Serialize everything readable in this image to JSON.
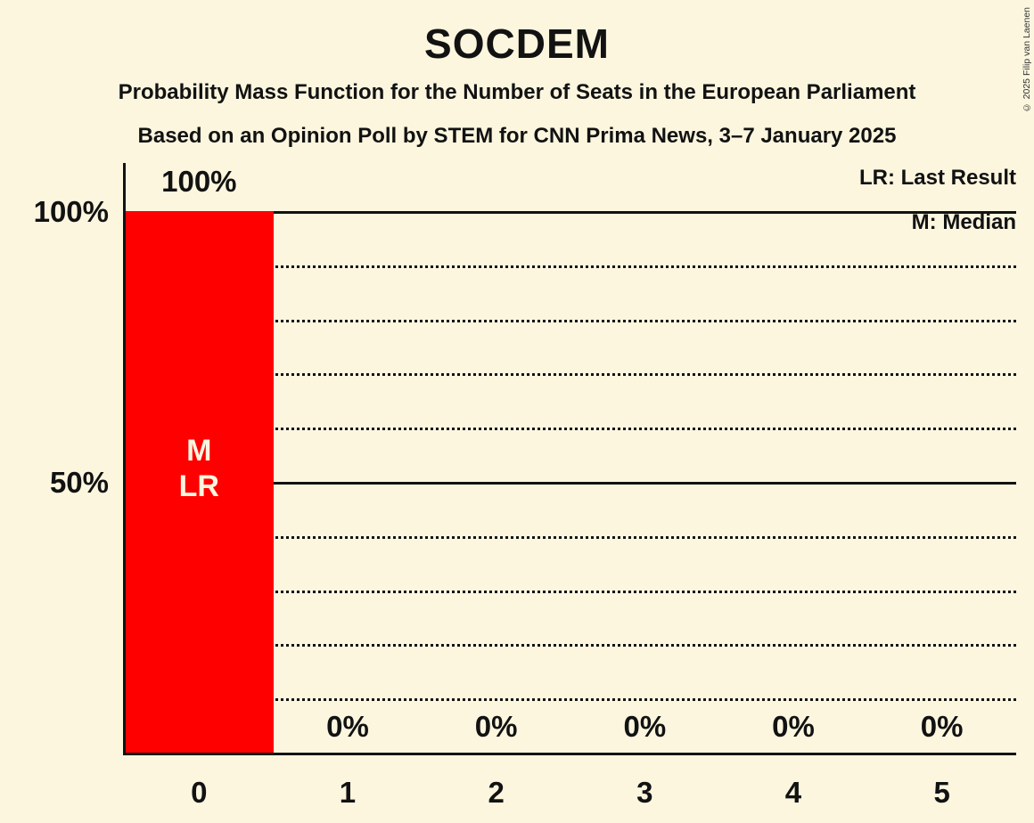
{
  "chart_data": {
    "type": "bar",
    "title": "SOCDEM",
    "subtitle_line1": "Probability Mass Function for the Number of Seats in the European Parliament",
    "subtitle_line2": "Based on an Opinion Poll by STEM for CNN Prima News, 3–7 January 2025",
    "legend": [
      "LR: Last Result",
      "M: Median"
    ],
    "copyright": "© 2025 Filip van Laenen",
    "xlabel": "",
    "ylabel": "",
    "categories": [
      "0",
      "1",
      "2",
      "3",
      "4",
      "5"
    ],
    "values": [
      100,
      0,
      0,
      0,
      0,
      0
    ],
    "bar_value_labels": [
      "100%",
      "0%",
      "0%",
      "0%",
      "0%",
      "0%"
    ],
    "bar_annotations": [
      {
        "index": 0,
        "lines": [
          "M",
          "LR"
        ]
      }
    ],
    "ylim": [
      0,
      100
    ],
    "y_ticks": [
      {
        "value": 100,
        "label": "100%"
      },
      {
        "value": 50,
        "label": "50%"
      }
    ],
    "gridlines": {
      "dotted_every": 10,
      "solid_at": [
        50,
        100
      ],
      "grid_on": true
    },
    "legend_position": "top-right",
    "colors": {
      "bar": "#ff0000",
      "background": "#fcf6df",
      "text": "#121212",
      "bar_annotation_text": "#fcf6df"
    }
  }
}
